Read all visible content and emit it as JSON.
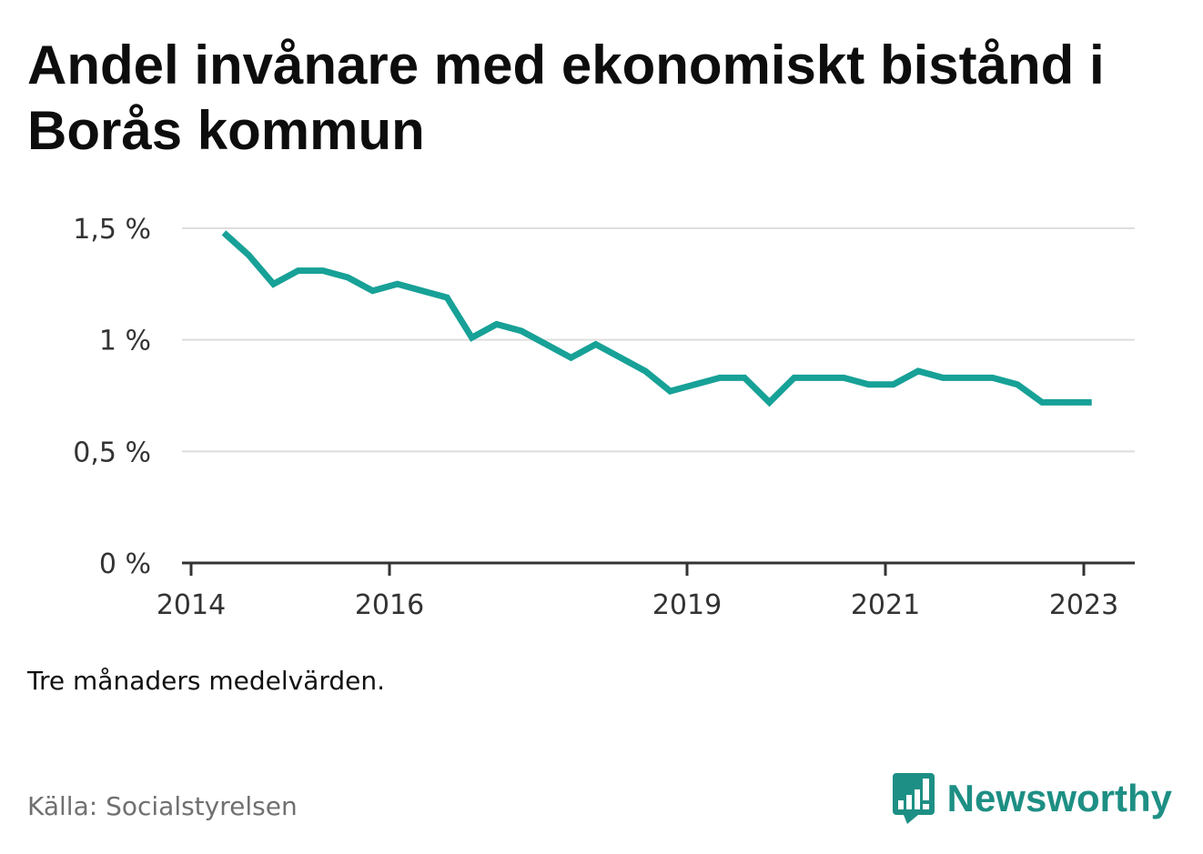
{
  "title": "Andel invånare med ekonomiskt bistånd i Borås kommun",
  "note": "Tre månaders medelvärden.",
  "source": "Källa: Socialstyrelsen",
  "brand": "Newsworthy",
  "colors": {
    "line": "#17a197",
    "grid": "#dddddd",
    "axis": "#333333",
    "brand": "#1e8f84"
  },
  "chart_data": {
    "type": "line",
    "title": "Andel invånare med ekonomiskt bistånd i Borås kommun",
    "xlabel": "",
    "ylabel": "",
    "ylim": [
      0,
      1.5
    ],
    "xlim": [
      2014,
      2023.25
    ],
    "yticks": [
      0,
      0.5,
      1,
      1.5
    ],
    "ytick_labels": [
      "0 %",
      "0,5 %",
      "1 %",
      "1,5 %"
    ],
    "xticks": [
      2014,
      2016,
      2019,
      2021,
      2023
    ],
    "xtick_labels": [
      "2014",
      "2016",
      "2019",
      "2021",
      "2023"
    ],
    "grid": true,
    "legend": "none",
    "series": [
      {
        "x": [
          2014.33,
          2014.58,
          2014.83,
          2015.08,
          2015.33,
          2015.58,
          2015.83,
          2016.08,
          2016.33,
          2016.58,
          2016.83,
          2017.08,
          2017.33,
          2017.58,
          2017.83,
          2018.08,
          2018.33,
          2018.58,
          2018.83,
          2019.08,
          2019.33,
          2019.58,
          2019.83,
          2020.08,
          2020.33,
          2020.58,
          2020.83,
          2021.08,
          2021.33,
          2021.58,
          2021.83,
          2022.08,
          2022.33,
          2022.58,
          2022.83,
          2023.08
        ],
        "values": [
          1.48,
          1.38,
          1.25,
          1.31,
          1.31,
          1.28,
          1.22,
          1.25,
          1.22,
          1.19,
          1.01,
          1.07,
          1.04,
          0.98,
          0.92,
          0.98,
          0.92,
          0.86,
          0.77,
          0.8,
          0.83,
          0.83,
          0.72,
          0.83,
          0.83,
          0.83,
          0.8,
          0.8,
          0.86,
          0.83,
          0.83,
          0.83,
          0.8,
          0.72,
          0.72,
          0.72
        ]
      }
    ]
  }
}
